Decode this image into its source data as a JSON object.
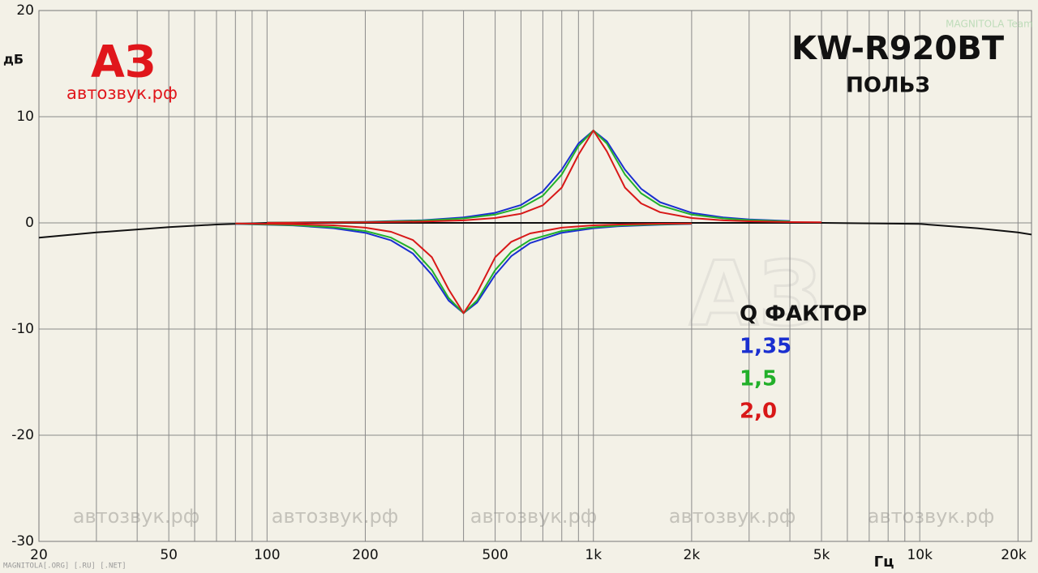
{
  "chart_data": {
    "type": "line",
    "title": "KW-R920BT",
    "subtitle": "ПОЛЬЗ",
    "y_label": "дБ",
    "x_label": "Гц",
    "logo": {
      "mark": "АЗ",
      "site": "автозвук.рф"
    },
    "watermarks": [
      "автозвук.рф",
      "автозвук.рф",
      "автозвук.рф",
      "автозвук.рф",
      "автозвук.рф"
    ],
    "footer": "MAGNITOLA[.ORG] [.RU] [.NET]",
    "corner_badge": "MAGNITOLA Team",
    "legend_title": "Q ФАКТОР",
    "log_x": true,
    "grid": true,
    "xlim": [
      20,
      22000
    ],
    "ylim": [
      -30,
      20
    ],
    "yticks": [
      20,
      10,
      0,
      -10,
      -20,
      -30
    ],
    "xticks": [
      20,
      50,
      100,
      200,
      500,
      {
        "value": 1000,
        "label": "1k"
      },
      {
        "value": 2000,
        "label": "2k"
      },
      {
        "value": 5000,
        "label": "5k"
      },
      {
        "value": 10000,
        "label": "10k"
      },
      {
        "value": 20000,
        "label": "20k"
      }
    ],
    "xminorticks": [
      30,
      40,
      60,
      70,
      80,
      90,
      300,
      400,
      600,
      700,
      800,
      900,
      3000,
      4000,
      6000,
      7000,
      8000,
      9000
    ],
    "reference": {
      "color": "#111111",
      "x": [
        20,
        30,
        50,
        70,
        100,
        1000,
        5000,
        10000,
        15000,
        20000,
        22000
      ],
      "values": [
        -1.4,
        -0.9,
        -0.4,
        -0.15,
        0,
        0,
        0,
        -0.1,
        -0.5,
        -0.9,
        -1.1
      ]
    },
    "series": [
      {
        "name": "1,35",
        "color": "#1a2fd0",
        "curves": [
          {
            "x": [
              100,
              200,
              300,
              400,
              500,
              600,
              700,
              800,
              900,
              1000,
              1100,
              1250,
              1400,
              1600,
              2000,
              2500,
              3000,
              4000
            ],
            "values": [
              0.02,
              0.1,
              0.25,
              0.51,
              0.95,
              1.69,
              2.96,
              5.01,
              7.48,
              8.7,
              7.68,
              5.01,
              3.21,
              1.95,
              0.95,
              0.51,
              0.32,
              0.17
            ]
          },
          {
            "x": [
              80,
              120,
              160,
              200,
              240,
              280,
              320,
              360,
              400,
              440,
              500,
              560,
              640,
              800,
              1000,
              1200,
              1600,
              2000
            ],
            "values": [
              -0.1,
              -0.24,
              -0.5,
              -0.93,
              -1.65,
              -2.89,
              -4.89,
              -7.31,
              -8.5,
              -7.5,
              -4.89,
              -3.14,
              -1.9,
              -0.93,
              -0.5,
              -0.31,
              -0.17,
              -0.1
            ]
          }
        ]
      },
      {
        "name": "1,5",
        "color": "#22b02a",
        "curves": [
          {
            "x": [
              100,
              200,
              300,
              400,
              500,
              600,
              700,
              800,
              900,
              1000,
              1100,
              1250,
              1400,
              1600,
              2000,
              2500,
              3000,
              4000
            ],
            "values": [
              0.02,
              0.08,
              0.21,
              0.42,
              0.78,
              1.42,
              2.56,
              4.55,
              7.24,
              8.7,
              7.47,
              4.55,
              2.79,
              1.65,
              0.78,
              0.42,
              0.26,
              0.14
            ]
          },
          {
            "x": [
              80,
              120,
              160,
              200,
              240,
              280,
              320,
              360,
              400,
              440,
              500,
              560,
              640,
              800,
              1000,
              1200,
              1600,
              2000
            ],
            "values": [
              -0.08,
              -0.21,
              -0.41,
              -0.76,
              -1.39,
              -2.5,
              -4.45,
              -7.07,
              -8.5,
              -7.3,
              -4.45,
              -2.73,
              -1.61,
              -0.76,
              -0.41,
              -0.25,
              -0.14,
              -0.08
            ]
          }
        ]
      },
      {
        "name": "2,0",
        "color": "#d81818",
        "curves": [
          {
            "x": [
              100,
              200,
              300,
              400,
              500,
              600,
              700,
              800,
              900,
              1000,
              1100,
              1250,
              1400,
              1600,
              2000,
              2500,
              3000,
              4000,
              5000
            ],
            "values": [
              0.01,
              0.05,
              0.12,
              0.24,
              0.46,
              0.86,
              1.66,
              3.32,
              6.41,
              8.7,
              6.73,
              3.32,
              1.83,
              1.01,
              0.46,
              0.24,
              0.15,
              0.08,
              0.05
            ]
          },
          {
            "x": [
              80,
              120,
              160,
              200,
              240,
              280,
              320,
              360,
              400,
              440,
              500,
              560,
              640,
              800,
              1000,
              1200,
              1600,
              2000
            ],
            "values": [
              -0.05,
              -0.12,
              -0.23,
              -0.45,
              -0.84,
              -1.62,
              -3.24,
              -6.26,
              -8.5,
              -6.58,
              -3.24,
              -1.79,
              -0.99,
              -0.45,
              -0.23,
              -0.15,
              -0.08,
              -0.05
            ]
          }
        ]
      }
    ]
  }
}
